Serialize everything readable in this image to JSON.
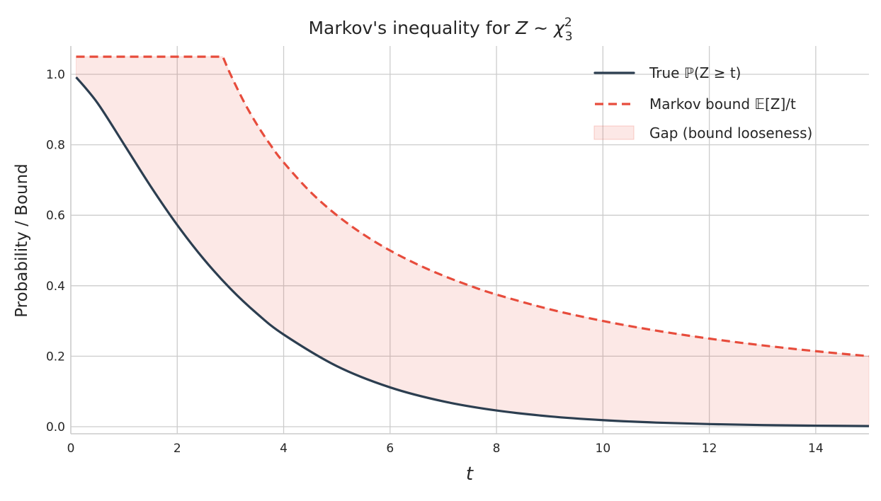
{
  "chart_data": {
    "type": "line",
    "title": "Markov's inequality for Z ~ χ²₃",
    "title_parts": {
      "prefix": "Markov's inequality for ",
      "var": "Z ~ χ",
      "sup": "2",
      "sub": "3"
    },
    "xlabel": "t",
    "ylabel": "Probability / Bound",
    "xlim": [
      0,
      15
    ],
    "ylim": [
      -0.02,
      1.08
    ],
    "xticks": [
      0,
      2,
      4,
      6,
      8,
      10,
      12,
      14
    ],
    "xtick_labels": [
      "0",
      "2",
      "4",
      "6",
      "8",
      "10",
      "12",
      "14"
    ],
    "yticks": [
      0.0,
      0.2,
      0.4,
      0.6,
      0.8,
      1.0
    ],
    "ytick_labels": [
      "0.0",
      "0.2",
      "0.4",
      "0.6",
      "0.8",
      "1.0"
    ],
    "grid": true,
    "legend_position": "top-right",
    "series": [
      {
        "name": "True ℙ(Z ≥ t)",
        "color": "#2c3e50",
        "style": "solid",
        "x": [
          0.1,
          0.5,
          1,
          1.5,
          2,
          2.5,
          3,
          3.5,
          4,
          5,
          6,
          7,
          8,
          9,
          10,
          11,
          12,
          13,
          14,
          15
        ],
        "y": [
          0.9918,
          0.9189,
          0.8013,
          0.6823,
          0.5724,
          0.4753,
          0.3916,
          0.3208,
          0.2615,
          0.1718,
          0.1116,
          0.0719,
          0.046,
          0.0293,
          0.0186,
          0.0117,
          0.0074,
          0.0046,
          0.0029,
          0.0018
        ]
      },
      {
        "name": "Markov bound 𝔼[Z]/t",
        "color": "#e74c3c",
        "style": "dashed",
        "x": [
          0.1,
          2.857,
          3,
          3.25,
          3.5,
          3.75,
          4,
          4.5,
          5,
          5.5,
          6,
          6.5,
          7,
          7.5,
          8,
          9,
          10,
          11,
          12,
          13,
          14,
          15
        ],
        "y": [
          1.05,
          1.05,
          1.0,
          0.923,
          0.857,
          0.8,
          0.75,
          0.6667,
          0.6,
          0.5455,
          0.5,
          0.4615,
          0.4286,
          0.4,
          0.375,
          0.3333,
          0.3,
          0.2727,
          0.25,
          0.2308,
          0.2143,
          0.2
        ]
      }
    ],
    "fill": {
      "name": "Gap (bound looseness)",
      "color": "#e74c3c",
      "alpha": 0.13
    }
  }
}
